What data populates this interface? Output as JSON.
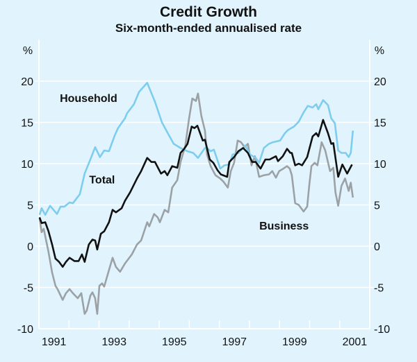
{
  "chart_data": {
    "type": "line",
    "title": "Credit Growth",
    "subtitle": "Six-month-ended annualised rate",
    "ylabel_left": "%",
    "ylabel_right": "%",
    "xlim": [
      1991,
      2002
    ],
    "ylim": [
      -10,
      25
    ],
    "yticks": [
      -10,
      -5,
      0,
      5,
      10,
      15,
      20
    ],
    "xticks": [
      1991,
      1992,
      1993,
      1994,
      1995,
      1996,
      1997,
      1998,
      1999,
      2000,
      2001,
      2002
    ],
    "xtick_labels": [
      {
        "label": "1991",
        "year": 1991
      },
      {
        "label": "1993",
        "year": 1993
      },
      {
        "label": "1995",
        "year": 1995
      },
      {
        "label": "1997",
        "year": 1997
      },
      {
        "label": "1999",
        "year": 1999
      },
      {
        "label": "2001",
        "year": 2001
      }
    ],
    "grid": true,
    "background": "#e1f3fc",
    "series": [
      {
        "name": "Household",
        "color": "#7ccdee",
        "label_at": [
          1992.65,
          17.5
        ],
        "points": [
          [
            1991.02,
            3.8
          ],
          [
            1991.09,
            4.6
          ],
          [
            1991.21,
            3.8
          ],
          [
            1991.37,
            4.9
          ],
          [
            1991.6,
            3.9
          ],
          [
            1991.72,
            4.8
          ],
          [
            1991.85,
            4.8
          ],
          [
            1992.02,
            5.3
          ],
          [
            1992.13,
            5.2
          ],
          [
            1992.36,
            6.3
          ],
          [
            1992.52,
            8.8
          ],
          [
            1992.71,
            10.5
          ],
          [
            1992.87,
            12.0
          ],
          [
            1993.03,
            10.8
          ],
          [
            1993.17,
            11.6
          ],
          [
            1993.33,
            11.5
          ],
          [
            1993.52,
            13.4
          ],
          [
            1993.63,
            14.3
          ],
          [
            1993.86,
            15.5
          ],
          [
            1993.93,
            16.1
          ],
          [
            1994.16,
            17.2
          ],
          [
            1994.33,
            18.7
          ],
          [
            1994.6,
            19.8
          ],
          [
            1994.86,
            17.5
          ],
          [
            1995.09,
            15.0
          ],
          [
            1995.3,
            13.6
          ],
          [
            1995.48,
            12.4
          ],
          [
            1995.71,
            11.9
          ],
          [
            1995.94,
            11.5
          ],
          [
            1996.13,
            11.3
          ],
          [
            1996.29,
            10.7
          ],
          [
            1996.52,
            11.9
          ],
          [
            1996.59,
            11.9
          ],
          [
            1996.71,
            11.5
          ],
          [
            1996.82,
            11.7
          ],
          [
            1997.03,
            9.4
          ],
          [
            1997.17,
            9.8
          ],
          [
            1997.33,
            9.9
          ],
          [
            1997.44,
            11.1
          ],
          [
            1997.63,
            11.3
          ],
          [
            1997.86,
            12.2
          ],
          [
            1998.02,
            11.1
          ],
          [
            1998.21,
            10.7
          ],
          [
            1998.32,
            10.1
          ],
          [
            1998.48,
            11.9
          ],
          [
            1998.65,
            12.4
          ],
          [
            1998.78,
            12.6
          ],
          [
            1999.02,
            12.8
          ],
          [
            1999.18,
            13.7
          ],
          [
            1999.29,
            14.1
          ],
          [
            1999.48,
            14.5
          ],
          [
            1999.64,
            15.1
          ],
          [
            1999.8,
            16.2
          ],
          [
            1999.94,
            17.0
          ],
          [
            2000.1,
            16.8
          ],
          [
            2000.22,
            17.2
          ],
          [
            2000.29,
            16.6
          ],
          [
            2000.45,
            17.7
          ],
          [
            2000.61,
            17.1
          ],
          [
            2000.72,
            15.5
          ],
          [
            2000.84,
            14.9
          ],
          [
            2000.95,
            11.6
          ],
          [
            2001.06,
            11.3
          ],
          [
            2001.2,
            11.3
          ],
          [
            2001.3,
            10.8
          ],
          [
            2001.37,
            11.3
          ],
          [
            2001.44,
            14.0
          ]
        ]
      },
      {
        "name": "Total",
        "color": "#111111",
        "label_at": [
          1993.1,
          7.6
        ],
        "points": [
          [
            1991.02,
            3.5
          ],
          [
            1991.09,
            2.8
          ],
          [
            1991.21,
            2.9
          ],
          [
            1991.32,
            1.8
          ],
          [
            1991.44,
            0.2
          ],
          [
            1991.55,
            -1.5
          ],
          [
            1991.67,
            -1.9
          ],
          [
            1991.79,
            -2.5
          ],
          [
            1991.9,
            -1.9
          ],
          [
            1992.02,
            -1.4
          ],
          [
            1992.18,
            -1.8
          ],
          [
            1992.32,
            -1.8
          ],
          [
            1992.43,
            -1.0
          ],
          [
            1992.52,
            -1.9
          ],
          [
            1992.66,
            0.2
          ],
          [
            1992.78,
            0.8
          ],
          [
            1992.87,
            0.7
          ],
          [
            1992.94,
            -0.4
          ],
          [
            1993.06,
            1.5
          ],
          [
            1993.17,
            1.8
          ],
          [
            1993.33,
            2.9
          ],
          [
            1993.45,
            4.4
          ],
          [
            1993.56,
            4.1
          ],
          [
            1993.75,
            4.6
          ],
          [
            1993.86,
            5.5
          ],
          [
            1994.03,
            6.5
          ],
          [
            1994.26,
            8.2
          ],
          [
            1994.4,
            9.1
          ],
          [
            1994.6,
            10.7
          ],
          [
            1994.74,
            10.2
          ],
          [
            1994.86,
            10.2
          ],
          [
            1995.06,
            8.8
          ],
          [
            1995.18,
            9.1
          ],
          [
            1995.27,
            8.6
          ],
          [
            1995.43,
            9.7
          ],
          [
            1995.6,
            9.5
          ],
          [
            1995.71,
            11.3
          ],
          [
            1995.83,
            11.8
          ],
          [
            1995.94,
            12.4
          ],
          [
            1996.08,
            14.5
          ],
          [
            1996.17,
            14.3
          ],
          [
            1996.27,
            14.6
          ],
          [
            1996.45,
            12.8
          ],
          [
            1996.52,
            12.9
          ],
          [
            1996.68,
            10.5
          ],
          [
            1996.8,
            10.1
          ],
          [
            1996.94,
            9.2
          ],
          [
            1997.05,
            8.7
          ],
          [
            1997.26,
            8.4
          ],
          [
            1997.33,
            10.2
          ],
          [
            1997.49,
            10.8
          ],
          [
            1997.63,
            11.5
          ],
          [
            1997.79,
            11.9
          ],
          [
            1997.95,
            11.3
          ],
          [
            1998.09,
            10.2
          ],
          [
            1998.21,
            10.2
          ],
          [
            1998.37,
            9.4
          ],
          [
            1998.53,
            10.5
          ],
          [
            1998.67,
            10.5
          ],
          [
            1998.88,
            10.9
          ],
          [
            1998.95,
            10.3
          ],
          [
            1999.11,
            10.9
          ],
          [
            1999.25,
            11.8
          ],
          [
            1999.36,
            11.3
          ],
          [
            1999.41,
            11.3
          ],
          [
            1999.52,
            9.8
          ],
          [
            1999.64,
            10.0
          ],
          [
            1999.75,
            9.8
          ],
          [
            1999.92,
            10.8
          ],
          [
            2000.1,
            13.3
          ],
          [
            2000.22,
            13.7
          ],
          [
            2000.29,
            13.3
          ],
          [
            2000.45,
            15.3
          ],
          [
            2000.61,
            13.7
          ],
          [
            2000.72,
            12.4
          ],
          [
            2000.79,
            12.5
          ],
          [
            2000.95,
            8.4
          ],
          [
            2001.09,
            9.9
          ],
          [
            2001.25,
            8.8
          ],
          [
            2001.41,
            9.9
          ]
        ]
      },
      {
        "name": "Business",
        "color": "#9ba1a5",
        "label_at": [
          1999.15,
          2.0
        ],
        "points": [
          [
            1991.02,
            3.4
          ],
          [
            1991.09,
            1.7
          ],
          [
            1991.16,
            2.1
          ],
          [
            1991.32,
            -0.7
          ],
          [
            1991.44,
            -3.2
          ],
          [
            1991.55,
            -4.8
          ],
          [
            1991.62,
            -5.2
          ],
          [
            1991.79,
            -6.5
          ],
          [
            1991.9,
            -5.7
          ],
          [
            1992.02,
            -5.2
          ],
          [
            1992.13,
            -5.7
          ],
          [
            1992.29,
            -6.3
          ],
          [
            1992.41,
            -5.7
          ],
          [
            1992.52,
            -8.2
          ],
          [
            1992.59,
            -7.8
          ],
          [
            1992.71,
            -6.0
          ],
          [
            1992.78,
            -5.6
          ],
          [
            1992.87,
            -6.3
          ],
          [
            1992.94,
            -8.2
          ],
          [
            1993.01,
            -4.8
          ],
          [
            1993.1,
            -4.5
          ],
          [
            1993.17,
            -4.9
          ],
          [
            1993.33,
            -2.9
          ],
          [
            1993.45,
            -1.4
          ],
          [
            1993.56,
            -2.5
          ],
          [
            1993.7,
            -3.1
          ],
          [
            1993.86,
            -2.1
          ],
          [
            1994.09,
            -1.0
          ],
          [
            1994.26,
            0.2
          ],
          [
            1994.4,
            0.7
          ],
          [
            1994.6,
            2.9
          ],
          [
            1994.67,
            2.4
          ],
          [
            1994.83,
            3.9
          ],
          [
            1994.95,
            3.5
          ],
          [
            1995.02,
            2.9
          ],
          [
            1995.18,
            4.4
          ],
          [
            1995.3,
            4.1
          ],
          [
            1995.43,
            7.1
          ],
          [
            1995.6,
            8.0
          ],
          [
            1995.71,
            10.2
          ],
          [
            1995.87,
            12.2
          ],
          [
            1995.99,
            15.4
          ],
          [
            1996.1,
            17.9
          ],
          [
            1996.22,
            17.6
          ],
          [
            1996.29,
            18.5
          ],
          [
            1996.4,
            15.8
          ],
          [
            1996.52,
            14.0
          ],
          [
            1996.59,
            11.1
          ],
          [
            1996.71,
            9.7
          ],
          [
            1996.87,
            8.6
          ],
          [
            1997.03,
            8.2
          ],
          [
            1997.14,
            7.8
          ],
          [
            1997.28,
            7.1
          ],
          [
            1997.38,
            9.1
          ],
          [
            1997.49,
            10.1
          ],
          [
            1997.61,
            12.8
          ],
          [
            1997.72,
            12.6
          ],
          [
            1997.84,
            12.0
          ],
          [
            1997.95,
            12.4
          ],
          [
            1998.07,
            9.8
          ],
          [
            1998.18,
            10.9
          ],
          [
            1998.32,
            8.4
          ],
          [
            1998.48,
            8.6
          ],
          [
            1998.65,
            8.7
          ],
          [
            1998.76,
            9.1
          ],
          [
            1998.88,
            8.3
          ],
          [
            1998.99,
            9.1
          ],
          [
            1999.13,
            9.4
          ],
          [
            1999.25,
            9.7
          ],
          [
            1999.34,
            9.4
          ],
          [
            1999.41,
            8.6
          ],
          [
            1999.52,
            5.2
          ],
          [
            1999.64,
            5.0
          ],
          [
            1999.8,
            4.2
          ],
          [
            1999.92,
            4.8
          ],
          [
            1999.99,
            7.4
          ],
          [
            2000.06,
            9.7
          ],
          [
            2000.17,
            10.1
          ],
          [
            2000.26,
            9.8
          ],
          [
            2000.4,
            12.6
          ],
          [
            2000.52,
            11.6
          ],
          [
            2000.68,
            9.1
          ],
          [
            2000.79,
            9.5
          ],
          [
            2000.86,
            6.5
          ],
          [
            2000.95,
            4.9
          ],
          [
            2001.06,
            7.3
          ],
          [
            2001.18,
            8.2
          ],
          [
            2001.3,
            6.7
          ],
          [
            2001.37,
            7.7
          ],
          [
            2001.44,
            5.9
          ]
        ]
      }
    ]
  }
}
